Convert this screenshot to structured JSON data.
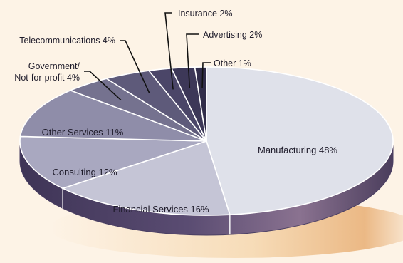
{
  "chart_data": {
    "type": "pie",
    "title": "",
    "slices": [
      {
        "label": "Manufacturing",
        "value": 48,
        "text": "Manufacturing 48%",
        "color": "#dfe1ea"
      },
      {
        "label": "Financial Services",
        "value": 16,
        "text": "Financial Services 16%",
        "color": "#c5c5d6"
      },
      {
        "label": "Consulting",
        "value": 12,
        "text": "Consulting 12%",
        "color": "#a9a8c0"
      },
      {
        "label": "Other Services",
        "value": 11,
        "text": "Other Services 11%",
        "color": "#8f8da9"
      },
      {
        "label": "Government/Not-for-profit",
        "value": 4,
        "text_lines": [
          "Government/",
          "Not-for-profit 4%"
        ],
        "color": "#75728f"
      },
      {
        "label": "Telecommunications",
        "value": 4,
        "text": "Telecommunications 4%",
        "color": "#5e5a7a"
      },
      {
        "label": "Insurance",
        "value": 2,
        "text": "Insurance 2%",
        "color": "#4b4668"
      },
      {
        "label": "Advertising",
        "value": 2,
        "text": "Advertising 2%",
        "color": "#3d3858"
      },
      {
        "label": "Other",
        "value": 1,
        "text": "Other 1%",
        "color": "#312d4a"
      }
    ],
    "style": "3d-tilted-pie",
    "edge_color": "#4a3f63"
  }
}
